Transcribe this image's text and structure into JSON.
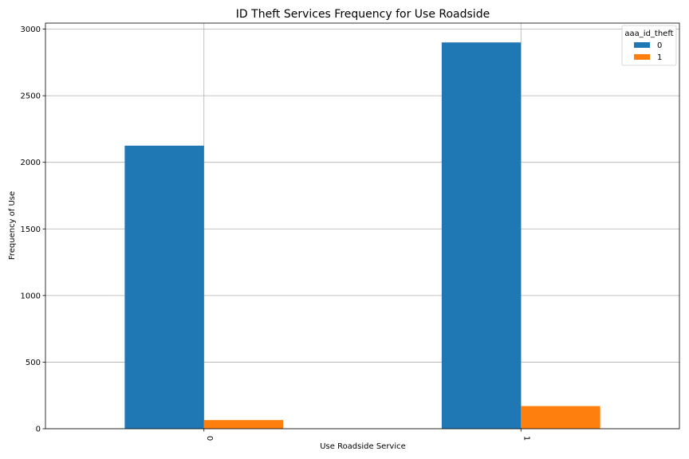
{
  "chart_data": {
    "type": "bar",
    "title": "ID Theft Services Frequency for Use Roadside",
    "xlabel": "Use Roadside Service",
    "ylabel": "Frequency of Use",
    "categories": [
      "0",
      "1"
    ],
    "series": [
      {
        "name": "0",
        "values": [
          2125,
          2900
        ],
        "color": "#1f77b4"
      },
      {
        "name": "1",
        "values": [
          65,
          170
        ],
        "color": "#ff7f0e"
      }
    ],
    "ylim": [
      0,
      3045
    ],
    "yticks": [
      0,
      500,
      1000,
      1500,
      2000,
      2500,
      3000
    ],
    "grid": true,
    "legend": {
      "title": "aaa_id_theft",
      "position": "top-right"
    }
  }
}
